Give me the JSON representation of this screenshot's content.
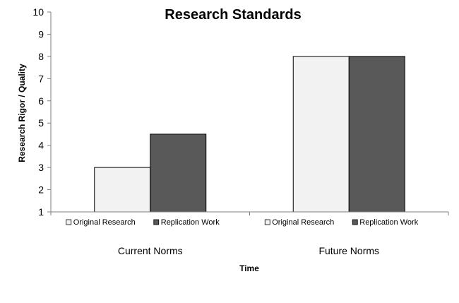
{
  "chart_data": {
    "type": "bar",
    "title": "Research Standards",
    "xlabel": "Time",
    "ylabel": "Research Rigor / Quality",
    "ylim": [
      1,
      10
    ],
    "yticks": [
      1,
      2,
      3,
      4,
      5,
      6,
      7,
      8,
      9,
      10
    ],
    "categories": [
      "Current Norms",
      "Future Norms"
    ],
    "series": [
      {
        "name": "Original Research",
        "values": [
          3,
          8
        ]
      },
      {
        "name": "Replication Work",
        "values": [
          4.5,
          8
        ]
      }
    ],
    "legend_placement": "below each category group",
    "grid": false
  },
  "colors": {
    "original_research": "#f2f2f2",
    "replication_work": "#595959",
    "axis": "#7f7f7f",
    "bar_outline": "#000000"
  }
}
